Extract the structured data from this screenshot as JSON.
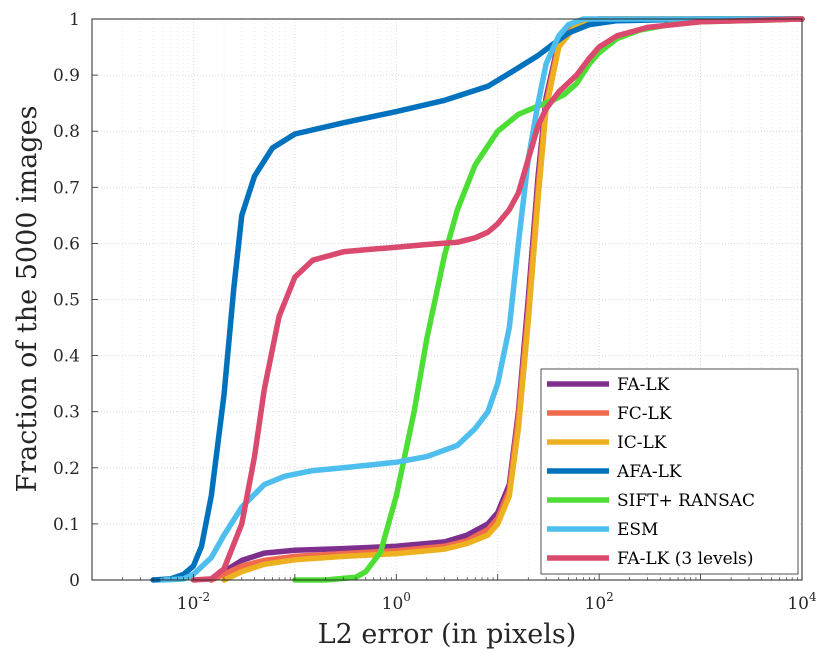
{
  "chart_data": {
    "type": "line",
    "xlabel": "L2 error (in pixels)",
    "ylabel": "Fraction of the 5000 images",
    "xscale": "log",
    "xlim": [
      0.001,
      10000
    ],
    "ylim": [
      0,
      1
    ],
    "grid": true,
    "legend_position": "bottom-right",
    "x_ticks": [
      {
        "value": 0.01,
        "base": "10",
        "exp": "-2"
      },
      {
        "value": 1,
        "base": "10",
        "exp": "0"
      },
      {
        "value": 100,
        "base": "10",
        "exp": "2"
      },
      {
        "value": 10000,
        "base": "10",
        "exp": "4"
      }
    ],
    "y_ticks": [
      {
        "value": 0,
        "label": "0"
      },
      {
        "value": 0.1,
        "label": "0.1"
      },
      {
        "value": 0.2,
        "label": "0.2"
      },
      {
        "value": 0.3,
        "label": "0.3"
      },
      {
        "value": 0.4,
        "label": "0.4"
      },
      {
        "value": 0.5,
        "label": "0.5"
      },
      {
        "value": 0.6,
        "label": "0.6"
      },
      {
        "value": 0.7,
        "label": "0.7"
      },
      {
        "value": 0.8,
        "label": "0.8"
      },
      {
        "value": 0.9,
        "label": "0.9"
      },
      {
        "value": 1,
        "label": "1"
      }
    ],
    "series": [
      {
        "name": "FA-LK",
        "color": "#7E2F8E",
        "points": [
          [
            0.015,
            0.0
          ],
          [
            0.02,
            0.015
          ],
          [
            0.03,
            0.035
          ],
          [
            0.05,
            0.048
          ],
          [
            0.1,
            0.053
          ],
          [
            0.3,
            0.056
          ],
          [
            1,
            0.06
          ],
          [
            3,
            0.068
          ],
          [
            5,
            0.08
          ],
          [
            8,
            0.1
          ],
          [
            10,
            0.12
          ],
          [
            13,
            0.17
          ],
          [
            16,
            0.3
          ],
          [
            20,
            0.5
          ],
          [
            25,
            0.72
          ],
          [
            30,
            0.86
          ],
          [
            40,
            0.96
          ],
          [
            60,
            0.995
          ],
          [
            100,
            1.0
          ],
          [
            10000,
            1.0
          ]
        ]
      },
      {
        "name": "FC-LK",
        "color": "#F06A4D",
        "points": [
          [
            0.015,
            0.0
          ],
          [
            0.02,
            0.01
          ],
          [
            0.03,
            0.025
          ],
          [
            0.05,
            0.035
          ],
          [
            0.1,
            0.042
          ],
          [
            0.3,
            0.047
          ],
          [
            1,
            0.052
          ],
          [
            3,
            0.06
          ],
          [
            5,
            0.07
          ],
          [
            8,
            0.09
          ],
          [
            10,
            0.11
          ],
          [
            13,
            0.16
          ],
          [
            16,
            0.29
          ],
          [
            20,
            0.48
          ],
          [
            25,
            0.7
          ],
          [
            30,
            0.85
          ],
          [
            40,
            0.955
          ],
          [
            60,
            0.993
          ],
          [
            100,
            1.0
          ],
          [
            10000,
            1.0
          ]
        ]
      },
      {
        "name": "IC-LK",
        "color": "#EDB120",
        "points": [
          [
            0.02,
            0.0
          ],
          [
            0.03,
            0.015
          ],
          [
            0.05,
            0.028
          ],
          [
            0.1,
            0.036
          ],
          [
            0.3,
            0.042
          ],
          [
            1,
            0.047
          ],
          [
            3,
            0.055
          ],
          [
            5,
            0.065
          ],
          [
            8,
            0.08
          ],
          [
            10,
            0.1
          ],
          [
            13,
            0.15
          ],
          [
            16,
            0.27
          ],
          [
            20,
            0.46
          ],
          [
            25,
            0.68
          ],
          [
            30,
            0.84
          ],
          [
            40,
            0.95
          ],
          [
            60,
            0.99
          ],
          [
            100,
            1.0
          ],
          [
            10000,
            1.0
          ]
        ]
      },
      {
        "name": "AFA-LK",
        "color": "#0072BD",
        "points": [
          [
            0.004,
            0.0
          ],
          [
            0.006,
            0.002
          ],
          [
            0.008,
            0.01
          ],
          [
            0.01,
            0.025
          ],
          [
            0.012,
            0.06
          ],
          [
            0.015,
            0.15
          ],
          [
            0.02,
            0.33
          ],
          [
            0.025,
            0.52
          ],
          [
            0.03,
            0.65
          ],
          [
            0.04,
            0.72
          ],
          [
            0.06,
            0.77
          ],
          [
            0.1,
            0.795
          ],
          [
            0.3,
            0.815
          ],
          [
            1,
            0.835
          ],
          [
            3,
            0.855
          ],
          [
            8,
            0.88
          ],
          [
            15,
            0.91
          ],
          [
            25,
            0.935
          ],
          [
            35,
            0.955
          ],
          [
            50,
            0.975
          ],
          [
            80,
            0.99
          ],
          [
            150,
            0.997
          ],
          [
            1000,
            1.0
          ],
          [
            10000,
            1.0
          ]
        ]
      },
      {
        "name": "SIFT+ RANSAC",
        "color": "#4DDE35",
        "points": [
          [
            0.1,
            0.0
          ],
          [
            0.2,
            0.0
          ],
          [
            0.4,
            0.005
          ],
          [
            0.5,
            0.015
          ],
          [
            0.7,
            0.05
          ],
          [
            1,
            0.15
          ],
          [
            1.5,
            0.3
          ],
          [
            2,
            0.43
          ],
          [
            3,
            0.58
          ],
          [
            4,
            0.66
          ],
          [
            6,
            0.74
          ],
          [
            10,
            0.8
          ],
          [
            16,
            0.83
          ],
          [
            25,
            0.845
          ],
          [
            35,
            0.855
          ],
          [
            45,
            0.865
          ],
          [
            60,
            0.885
          ],
          [
            80,
            0.92
          ],
          [
            100,
            0.94
          ],
          [
            150,
            0.965
          ],
          [
            250,
            0.98
          ],
          [
            500,
            0.99
          ],
          [
            1000,
            0.995
          ],
          [
            10000,
            1.0
          ]
        ]
      },
      {
        "name": "ESM",
        "color": "#4DBEEE",
        "points": [
          [
            0.005,
            0.0
          ],
          [
            0.008,
            0.002
          ],
          [
            0.01,
            0.01
          ],
          [
            0.015,
            0.04
          ],
          [
            0.02,
            0.08
          ],
          [
            0.03,
            0.13
          ],
          [
            0.05,
            0.17
          ],
          [
            0.08,
            0.185
          ],
          [
            0.15,
            0.195
          ],
          [
            0.3,
            0.2
          ],
          [
            1,
            0.21
          ],
          [
            2,
            0.22
          ],
          [
            4,
            0.24
          ],
          [
            6,
            0.27
          ],
          [
            8,
            0.3
          ],
          [
            10,
            0.35
          ],
          [
            13,
            0.45
          ],
          [
            16,
            0.6
          ],
          [
            20,
            0.75
          ],
          [
            25,
            0.85
          ],
          [
            30,
            0.92
          ],
          [
            40,
            0.97
          ],
          [
            50,
            0.99
          ],
          [
            70,
            1.0
          ],
          [
            10000,
            1.0
          ]
        ]
      },
      {
        "name": "FA-LK (3 levels)",
        "color": "#D94A6E",
        "points": [
          [
            0.01,
            0.0
          ],
          [
            0.015,
            0.002
          ],
          [
            0.02,
            0.02
          ],
          [
            0.03,
            0.1
          ],
          [
            0.04,
            0.22
          ],
          [
            0.05,
            0.34
          ],
          [
            0.07,
            0.47
          ],
          [
            0.1,
            0.54
          ],
          [
            0.15,
            0.57
          ],
          [
            0.3,
            0.585
          ],
          [
            0.6,
            0.59
          ],
          [
            1,
            0.593
          ],
          [
            2,
            0.598
          ],
          [
            4,
            0.602
          ],
          [
            6,
            0.61
          ],
          [
            8,
            0.62
          ],
          [
            10,
            0.635
          ],
          [
            13,
            0.66
          ],
          [
            16,
            0.69
          ],
          [
            20,
            0.75
          ],
          [
            25,
            0.81
          ],
          [
            30,
            0.84
          ],
          [
            40,
            0.87
          ],
          [
            60,
            0.9
          ],
          [
            80,
            0.93
          ],
          [
            100,
            0.95
          ],
          [
            150,
            0.97
          ],
          [
            300,
            0.985
          ],
          [
            1000,
            0.995
          ],
          [
            10000,
            1.0
          ]
        ]
      }
    ]
  }
}
